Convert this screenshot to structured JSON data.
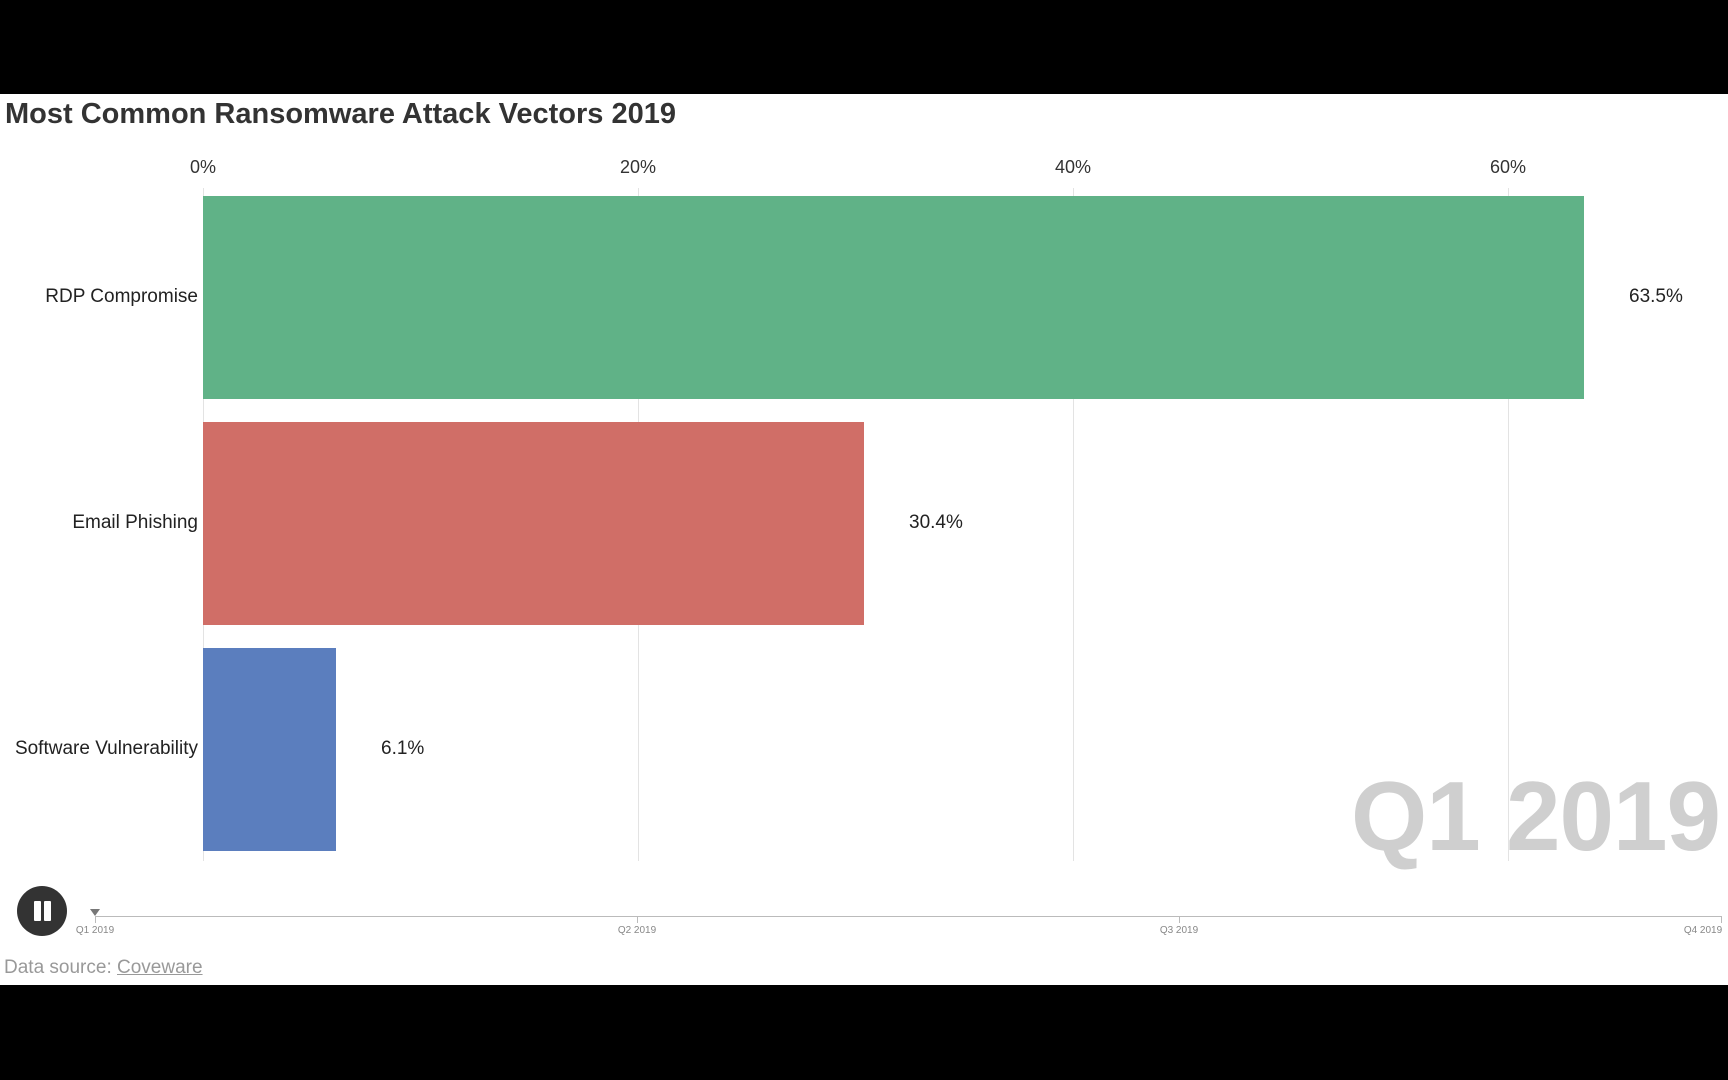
{
  "title": "Most Common Ransomware Attack Vectors 2019",
  "period_watermark": "Q1 2019",
  "chart_data": {
    "type": "bar",
    "orientation": "horizontal",
    "title": "Most Common Ransomware Attack Vectors 2019",
    "categories": [
      "RDP Compromise",
      "Email Phishing",
      "Software Vulnerability"
    ],
    "values": [
      63.5,
      30.4,
      6.1
    ],
    "value_labels": [
      "63.5%",
      "30.4%",
      "6.1%"
    ],
    "colors": [
      "#60b287",
      "#d06e67",
      "#5b7ebe"
    ],
    "xlim": [
      0,
      70
    ],
    "x_ticks": [
      0,
      20,
      40,
      60
    ],
    "x_tick_labels": [
      "0%",
      "20%",
      "40%",
      "60%"
    ],
    "grid": true,
    "xlabel": "",
    "ylabel": ""
  },
  "timeline": {
    "labels": [
      "Q1 2019",
      "Q2 2019",
      "Q3 2019",
      "Q4 2019"
    ],
    "current_index": 0,
    "control_icon": "pause-icon"
  },
  "source": {
    "prefix": "Data source: ",
    "link_text": "Coveware"
  }
}
